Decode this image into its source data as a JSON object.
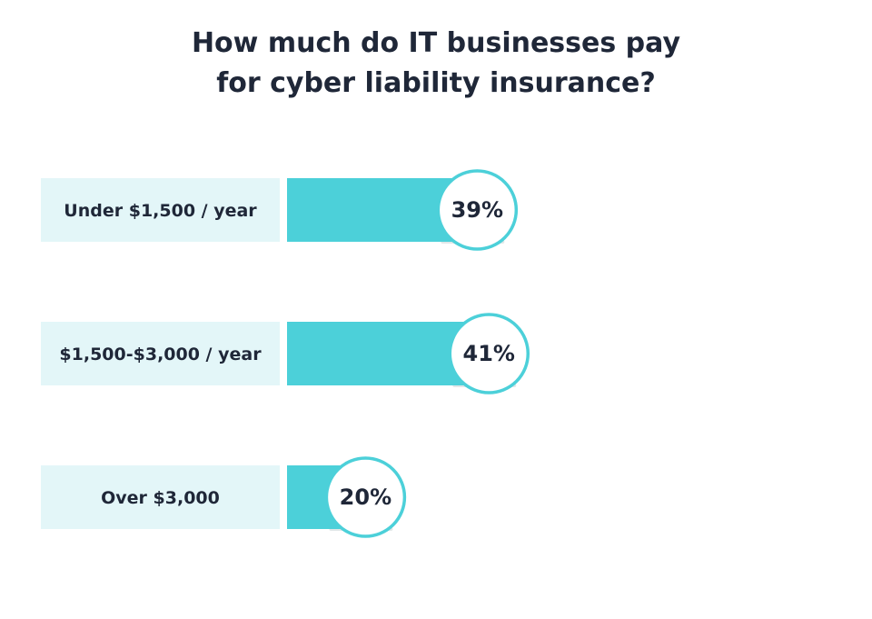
{
  "chart_data": {
    "type": "bar",
    "orientation": "horizontal",
    "title": "How much do IT businesses pay for cyber liability insurance?",
    "title_lines": [
      "How much do IT businesses pay",
      "for cyber liability insurance?"
    ],
    "categories": [
      "Under $1,500 / year",
      "$1,500-$3,000 / year",
      "Over $3,000"
    ],
    "values": [
      39,
      41,
      20
    ],
    "value_labels": [
      "39%",
      "41%",
      "20%"
    ],
    "unit": "%",
    "xlim": [
      0,
      100
    ],
    "grid": false,
    "legend": "none",
    "colors": {
      "bar": "#4cd0d9",
      "label_box": "#e3f6f8",
      "bubble_fill": "#ffffff",
      "bubble_stroke": "#4cd0d9",
      "text": "#1f2738"
    }
  }
}
